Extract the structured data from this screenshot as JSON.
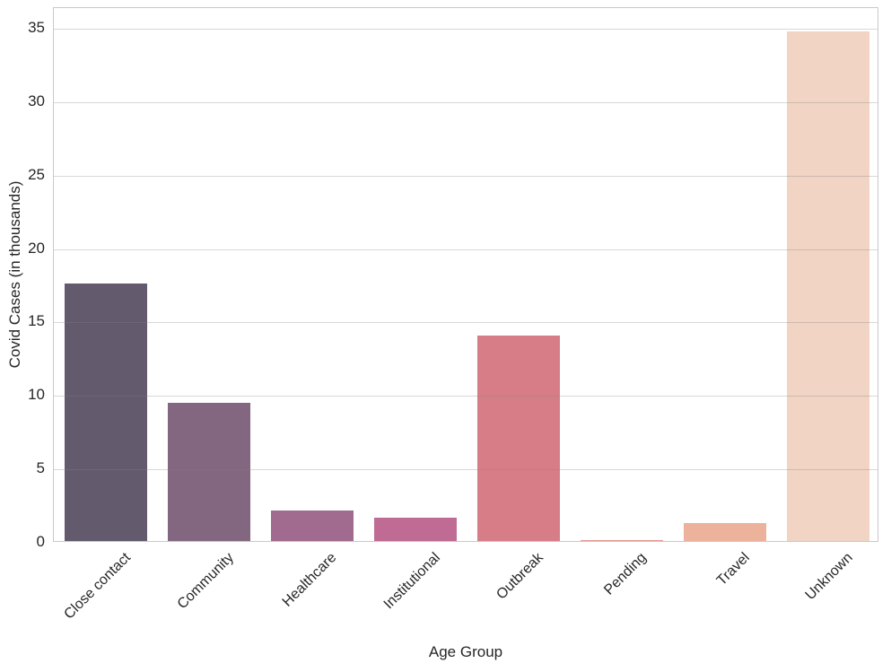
{
  "chart_data": {
    "type": "bar",
    "title": "",
    "xlabel": "Age Group",
    "ylabel": "Covid Cases (in thousands)",
    "categories": [
      "Close contact",
      "Community",
      "Healthcare",
      "Institutional",
      "Outbreak",
      "Pending",
      "Travel",
      "Unknown"
    ],
    "values": [
      17.5,
      9.4,
      2.1,
      1.6,
      14.0,
      0.05,
      1.2,
      34.7
    ],
    "bar_colors": [
      "#645a6e",
      "#836780",
      "#a16a8f",
      "#bf6b93",
      "#d67d87",
      "#e2988f",
      "#ecb29c",
      "#f1d4c3"
    ],
    "yticks": [
      0,
      5,
      10,
      15,
      20,
      25,
      30,
      35
    ],
    "ylim": [
      0,
      36.4
    ],
    "grid": true,
    "grid_color": "#dcdcdc",
    "spine_color": "#c9c9c9",
    "text_color": "#262626",
    "background": "#ffffff",
    "legend": null
  }
}
